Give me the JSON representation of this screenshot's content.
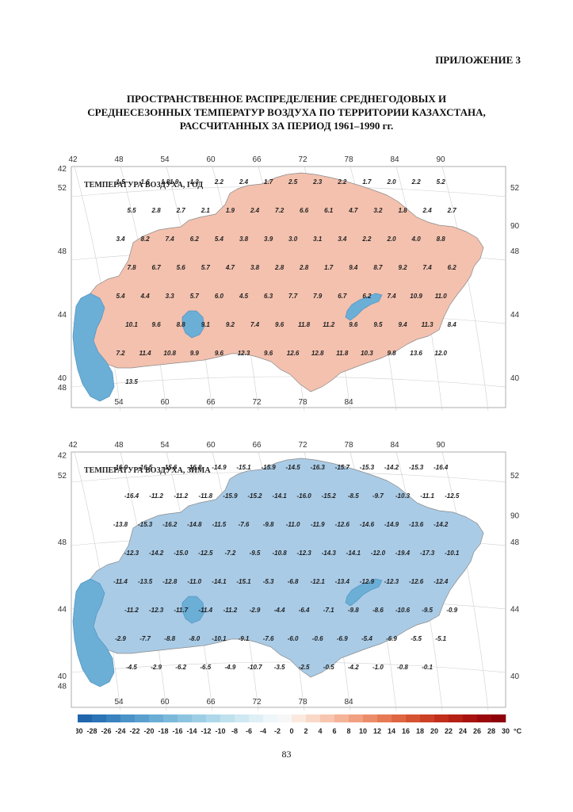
{
  "appendix": "ПРИЛОЖЕНИЕ 3",
  "title_lines": [
    "ПРОСТРАНСТВЕННОЕ РАСПРЕДЕЛЕНИЕ СРЕДНЕГОДОВЫХ И",
    "СРЕДНЕСЕЗОННЫХ ТЕМПЕРАТУР ВОЗДУХА ПО ТЕРРИТОРИИ КАЗАХСТАНА,",
    "РАССЧИТАННЫХ ЗА ПЕРИОД 1961–1990 гг."
  ],
  "maps": [
    {
      "caption": "ТЕМПЕРАТУРА ВОЗДУХА, ГОД",
      "top_lon_labels": [
        "42",
        "48",
        "54",
        "60",
        "66",
        "72",
        "78",
        "84",
        "90"
      ],
      "bottom_lon_labels": [
        "54",
        "60",
        "66",
        "72",
        "78",
        "84"
      ],
      "left_lat_labels": [
        "42",
        "52",
        "48",
        "44",
        "40",
        "48"
      ],
      "right_lat_labels": [
        "52",
        "90",
        "48",
        "44",
        "40"
      ],
      "land_color": "#f3c1ae",
      "water_color": "#6baed6",
      "values": [
        "1.5",
        "1.6",
        "1.81.9",
        "1.3",
        "2.2",
        "2.4",
        "1.7",
        "2.5",
        "2.3",
        "2.2",
        "1.7",
        "2.0",
        "2.2",
        "5.2",
        "5.5",
        "2.8",
        "2.7",
        "2.1",
        "1.9",
        "2.4",
        "7.2",
        "6.6",
        "6.1",
        "4.7",
        "3.2",
        "1.8",
        "2.4",
        "2.7",
        "3.4",
        "8.2",
        "7.4",
        "6.2",
        "5.4",
        "3.8",
        "3.9",
        "3.0",
        "3.1",
        "3.4",
        "2.2",
        "2.0",
        "4.0",
        "8.8",
        "7.8",
        "6.7",
        "5.6",
        "5.7",
        "4.7",
        "3.8",
        "2.8",
        "2.8",
        "1.7",
        "9.4",
        "8.7",
        "9.2",
        "7.4",
        "6.2",
        "5.4",
        "4.4",
        "3.3",
        "5.7",
        "6.0",
        "4.5",
        "6.3",
        "7.7",
        "7.9",
        "6.7",
        "6.2",
        "7.4",
        "10.9",
        "11.0",
        "10.1",
        "9.6",
        "8.8",
        "9.1",
        "9.2",
        "7.4",
        "9.6",
        "11.8",
        "11.2",
        "9.6",
        "9.5",
        "9.4",
        "11.3",
        "8.4",
        "7.2",
        "11.4",
        "10.8",
        "9.9",
        "9.6",
        "12.3",
        "9.6",
        "12.6",
        "12.8",
        "11.8",
        "10.3",
        "9.8",
        "13.6",
        "12.0",
        "13.5"
      ]
    },
    {
      "caption": "ТЕМПЕРАТУРА ВОЗДУХА, ЗИМА",
      "top_lon_labels": [
        "42",
        "48",
        "54",
        "60",
        "66",
        "72",
        "78",
        "84",
        "90"
      ],
      "bottom_lon_labels": [
        "54",
        "60",
        "66",
        "72",
        "78",
        "84"
      ],
      "left_lat_labels": [
        "42",
        "52",
        "48",
        "44",
        "40",
        "48"
      ],
      "right_lat_labels": [
        "52",
        "90",
        "48",
        "44",
        "40"
      ],
      "land_color": "#a9cbe6",
      "water_color": "#6baed6",
      "values": [
        "-16.0",
        "-16.5",
        "-15.6",
        "-16.8",
        "-14.9",
        "-15.1",
        "-15.9",
        "-14.5",
        "-16.3",
        "-15.7",
        "-15.3",
        "-14.2",
        "-15.3",
        "-16.4",
        "-16.4",
        "-11.2",
        "-11.2",
        "-11.8",
        "-15.9",
        "-15.2",
        "-14.1",
        "-16.0",
        "-15.2",
        "-8.5",
        "-9.7",
        "-10.3",
        "-11.1",
        "-12.5",
        "-13.8",
        "-15.3",
        "-16.2",
        "-14.8",
        "-11.5",
        "-7.6",
        "-9.8",
        "-11.0",
        "-11.9",
        "-12.6",
        "-14.6",
        "-14.9",
        "-13.6",
        "-14.2",
        "-12.3",
        "-14.2",
        "-15.0",
        "-12.5",
        "-7.2",
        "-9.5",
        "-10.8",
        "-12.3",
        "-14.3",
        "-14.1",
        "-12.0",
        "-19.4",
        "-17.3",
        "-10.1",
        "-11.4",
        "-13.5",
        "-12.8",
        "-11.0",
        "-14.1",
        "-15.1",
        "-5.3",
        "-6.8",
        "-12.1",
        "-13.4",
        "-12.9",
        "-12.3",
        "-12.6",
        "-12.4",
        "-11.2",
        "-12.3",
        "-11.7",
        "-11.4",
        "-11.2",
        "-2.9",
        "-4.4",
        "-6.4",
        "-7.1",
        "-9.8",
        "-8.6",
        "-10.6",
        "-9.5",
        "-0.9",
        "-2.9",
        "-7.7",
        "-8.8",
        "-8.0",
        "-10.1",
        "-9.1",
        "-7.6",
        "-6.0",
        "-0.6",
        "-6.9",
        "-5.4",
        "-6.9",
        "-5.5",
        "-5.1",
        "-4.5",
        "-2.9",
        "-6.2",
        "-6.5",
        "-4.9",
        "-10.7",
        "-3.5",
        "-2.5",
        "-0.5",
        "-4.2",
        "-1.0",
        "-0.8",
        "-0.1"
      ]
    }
  ],
  "legend": {
    "ticks": [
      "-30",
      "-28",
      "-26",
      "-24",
      "-22",
      "-20",
      "-18",
      "-16",
      "-14",
      "-12",
      "-10",
      "-8",
      "-6",
      "-4",
      "-2",
      "0",
      "2",
      "4",
      "6",
      "8",
      "10",
      "12",
      "14",
      "16",
      "18",
      "20",
      "22",
      "24",
      "26",
      "28",
      "30"
    ],
    "unit": "°C",
    "colors": [
      "#2166ac",
      "#2b74b6",
      "#3a83bf",
      "#4a92c8",
      "#5aa0cf",
      "#6aadd5",
      "#7bb9db",
      "#8cc4e0",
      "#9dcee5",
      "#aed8ea",
      "#bfe1ee",
      "#cfe8f2",
      "#dfeff6",
      "#eef6fa",
      "#f7f7f7",
      "#fbe9e0",
      "#fad8c8",
      "#f8c6b0",
      "#f5b398",
      "#f1a080",
      "#ec8d6a",
      "#e67a55",
      "#df6642",
      "#d65332",
      "#cc4025",
      "#c12f1b",
      "#b52014",
      "#a8130f",
      "#9b080c",
      "#8e000a"
    ]
  },
  "page_number": "83"
}
